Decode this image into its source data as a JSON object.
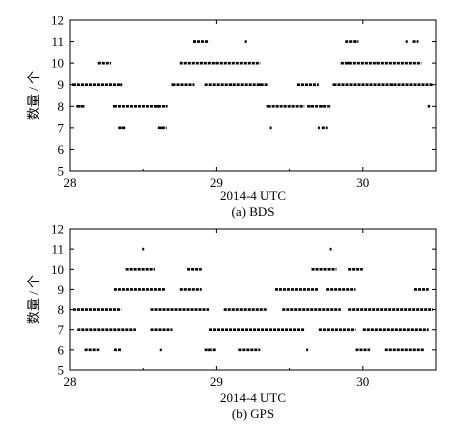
{
  "chart_data": [
    {
      "type": "scatter",
      "title": "",
      "caption": "(a) BDS",
      "xlabel": "2014-4 UTC",
      "ylabel": "数量 / 个",
      "xlim": [
        28,
        30.5
      ],
      "ylim": [
        5,
        12
      ],
      "xticks": [
        "28",
        "29",
        "30"
      ],
      "yticks": [
        "5",
        "6",
        "7",
        "8",
        "9",
        "10",
        "11",
        "12"
      ],
      "grid": false,
      "points": [
        [
          28.02,
          9
        ],
        [
          28.35,
          9
        ],
        [
          28.05,
          8
        ],
        [
          28.08,
          8
        ],
        [
          28.2,
          10
        ],
        [
          28.28,
          9
        ],
        [
          28.3,
          8
        ],
        [
          28.34,
          7
        ],
        [
          28.36,
          7
        ],
        [
          28.45,
          8
        ],
        [
          28.6,
          8
        ],
        [
          28.62,
          7
        ],
        [
          28.66,
          8
        ],
        [
          28.7,
          9
        ],
        [
          28.76,
          10
        ],
        [
          28.85,
          11
        ],
        [
          28.9,
          10
        ],
        [
          29.0,
          10
        ],
        [
          29.1,
          9
        ],
        [
          29.2,
          11
        ],
        [
          29.3,
          9
        ],
        [
          29.35,
          8
        ],
        [
          29.37,
          7
        ],
        [
          29.5,
          8
        ],
        [
          29.65,
          8
        ],
        [
          29.7,
          7
        ],
        [
          29.72,
          8
        ],
        [
          29.8,
          9
        ],
        [
          29.9,
          10
        ],
        [
          29.95,
          11
        ],
        [
          30.1,
          10
        ],
        [
          30.2,
          9
        ],
        [
          30.3,
          11
        ],
        [
          30.45,
          8
        ]
      ],
      "segments": [
        {
          "y": 9,
          "x": [
            [
              28.02,
              28.35
            ],
            [
              28.7,
              28.85
            ],
            [
              28.92,
              29.35
            ],
            [
              29.55,
              29.7
            ],
            [
              29.8,
              30.48
            ]
          ]
        },
        {
          "y": 8,
          "x": [
            [
              28.05,
              28.1
            ],
            [
              28.3,
              28.65
            ],
            [
              29.35,
              29.6
            ],
            [
              29.62,
              29.78
            ],
            [
              30.45,
              30.46
            ]
          ]
        },
        {
          "y": 10,
          "x": [
            [
              28.19,
              28.28
            ],
            [
              28.75,
              29.3
            ],
            [
              29.85,
              30.4
            ]
          ]
        },
        {
          "y": 11,
          "x": [
            [
              28.84,
              28.95
            ],
            [
              29.88,
              29.97
            ],
            [
              30.34,
              30.38
            ]
          ]
        },
        {
          "y": 7,
          "x": [
            [
              28.33,
              28.38
            ],
            [
              28.6,
              28.66
            ],
            [
              29.72,
              29.76
            ]
          ]
        }
      ]
    },
    {
      "type": "scatter",
      "title": "",
      "caption": "(b) GPS",
      "xlabel": "2014-4 UTC",
      "ylabel": "数量 / 个",
      "xlim": [
        28,
        30.5
      ],
      "ylim": [
        5,
        12
      ],
      "xticks": [
        "28",
        "29",
        "30"
      ],
      "yticks": [
        "5",
        "6",
        "7",
        "8",
        "9",
        "10",
        "11",
        "12"
      ],
      "grid": false,
      "points": [
        [
          28.5,
          11
        ],
        [
          29.78,
          11
        ],
        [
          28.95,
          6
        ],
        [
          28.62,
          6
        ],
        [
          29.62,
          6
        ]
      ],
      "segments": [
        {
          "y": 8,
          "x": [
            [
              28.02,
              28.35
            ],
            [
              28.55,
              28.95
            ],
            [
              29.05,
              29.35
            ],
            [
              29.45,
              29.85
            ],
            [
              29.9,
              30.48
            ]
          ]
        },
        {
          "y": 7,
          "x": [
            [
              28.05,
              28.45
            ],
            [
              28.55,
              28.7
            ],
            [
              28.95,
              29.6
            ],
            [
              29.7,
              29.95
            ],
            [
              30.0,
              30.45
            ]
          ]
        },
        {
          "y": 9,
          "x": [
            [
              28.3,
              28.65
            ],
            [
              28.75,
              28.9
            ],
            [
              29.4,
              29.7
            ],
            [
              29.75,
              29.95
            ],
            [
              30.35,
              30.45
            ]
          ]
        },
        {
          "y": 10,
          "x": [
            [
              28.38,
              28.58
            ],
            [
              28.8,
              28.9
            ],
            [
              29.65,
              29.82
            ],
            [
              29.9,
              30.0
            ]
          ]
        },
        {
          "y": 6,
          "x": [
            [
              28.1,
              28.2
            ],
            [
              28.3,
              28.35
            ],
            [
              28.92,
              29.0
            ],
            [
              29.15,
              29.3
            ],
            [
              29.95,
              30.05
            ],
            [
              30.15,
              30.42
            ]
          ]
        }
      ]
    }
  ]
}
